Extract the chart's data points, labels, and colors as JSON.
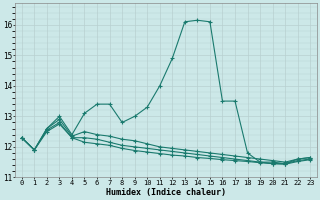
{
  "title": "",
  "xlabel": "Humidex (Indice chaleur)",
  "background_color": "#cce8e8",
  "grid_color": "#b8d0d0",
  "line_color": "#1a7a6e",
  "xlim": [
    -0.5,
    23.5
  ],
  "ylim": [
    11.0,
    16.7
  ],
  "yticks": [
    11,
    12,
    13,
    14,
    15,
    16
  ],
  "xticks": [
    0,
    1,
    2,
    3,
    4,
    5,
    6,
    7,
    8,
    9,
    10,
    11,
    12,
    13,
    14,
    15,
    16,
    17,
    18,
    19,
    20,
    21,
    22,
    23
  ],
  "series": [
    [
      12.3,
      11.9,
      12.6,
      13.0,
      12.4,
      13.1,
      13.4,
      13.4,
      12.8,
      13.0,
      13.3,
      14.0,
      14.9,
      16.1,
      16.15,
      16.1,
      13.5,
      13.5,
      11.8,
      11.5,
      11.45,
      11.45,
      11.6,
      11.65
    ],
    [
      12.3,
      11.9,
      12.6,
      12.9,
      12.35,
      12.5,
      12.4,
      12.35,
      12.25,
      12.2,
      12.1,
      12.0,
      11.95,
      11.9,
      11.85,
      11.8,
      11.75,
      11.7,
      11.65,
      11.6,
      11.55,
      11.5,
      11.6,
      11.65
    ],
    [
      12.3,
      11.9,
      12.55,
      12.8,
      12.3,
      12.3,
      12.25,
      12.15,
      12.05,
      12.0,
      11.95,
      11.9,
      11.85,
      11.8,
      11.75,
      11.7,
      11.65,
      11.6,
      11.55,
      11.5,
      11.5,
      11.45,
      11.55,
      11.6
    ],
    [
      12.3,
      11.9,
      12.5,
      12.75,
      12.3,
      12.15,
      12.1,
      12.05,
      11.95,
      11.88,
      11.83,
      11.78,
      11.73,
      11.7,
      11.65,
      11.62,
      11.58,
      11.55,
      11.52,
      11.48,
      11.45,
      11.43,
      11.52,
      11.58
    ]
  ]
}
